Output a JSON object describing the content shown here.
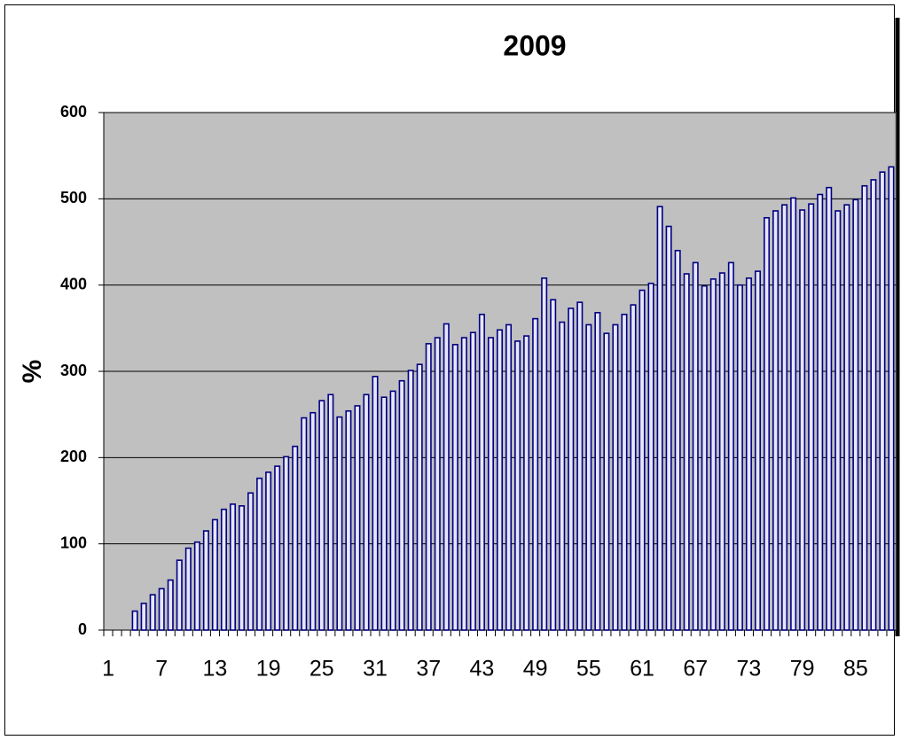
{
  "chart_data": {
    "type": "bar",
    "title": "2009",
    "y_label": "%",
    "categories": [
      "1",
      null,
      null,
      null,
      null,
      null,
      "7",
      null,
      null,
      null,
      null,
      null,
      "13",
      null,
      null,
      null,
      null,
      null,
      "19",
      null,
      null,
      null,
      null,
      null,
      "25",
      null,
      null,
      null,
      null,
      null,
      "31",
      null,
      null,
      null,
      null,
      null,
      "37",
      null,
      null,
      null,
      null,
      null,
      "43",
      null,
      null,
      null,
      null,
      null,
      "49",
      null,
      null,
      null,
      null,
      null,
      "55",
      null,
      null,
      null,
      null,
      null,
      "61",
      null,
      null,
      null,
      null,
      null,
      "67",
      null,
      null,
      null,
      null,
      null,
      "73",
      null,
      null,
      null,
      null,
      null,
      "79",
      null,
      null,
      null,
      null,
      null,
      "85",
      null,
      null,
      null,
      null
    ],
    "values": [
      null,
      null,
      null,
      22,
      31,
      41,
      48,
      58,
      81,
      95,
      102,
      115,
      128,
      140,
      146,
      144,
      159,
      176,
      183,
      190,
      201,
      213,
      246,
      252,
      266,
      273,
      247,
      254,
      260,
      273,
      294,
      270,
      277,
      289,
      301,
      308,
      332,
      339,
      355,
      331,
      339,
      345,
      366,
      339,
      348,
      354,
      335,
      341,
      361,
      408,
      383,
      357,
      373,
      380,
      354,
      368,
      344,
      354,
      366,
      377,
      394,
      402,
      491,
      468,
      440,
      413,
      426,
      399,
      407,
      414,
      426,
      400,
      408,
      416,
      478,
      486,
      493,
      501,
      487,
      494,
      505,
      513,
      486,
      493,
      499,
      515,
      522,
      531,
      537
    ],
    "color": "#000080",
    "ylim": [
      0,
      600
    ],
    "yticks": [
      0,
      100,
      200,
      300,
      400,
      500,
      600
    ],
    "grid": true
  }
}
